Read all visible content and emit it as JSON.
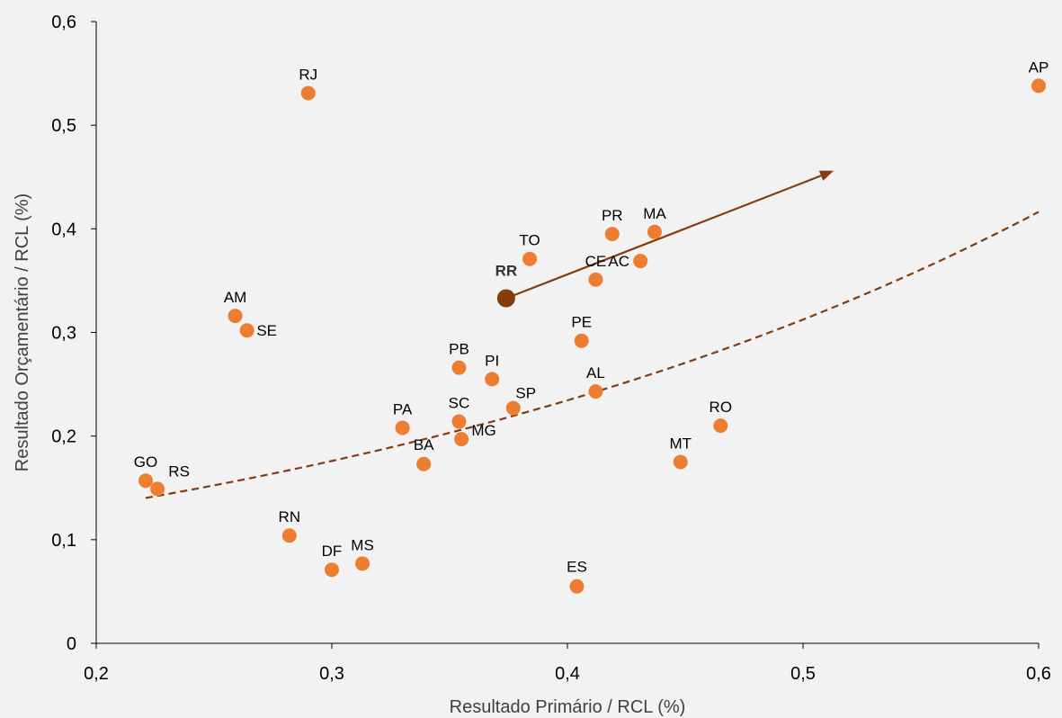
{
  "chart_data": {
    "type": "scatter",
    "title": "",
    "xlabel": "Resultado Primário / RCL (%)",
    "ylabel": "Resultado Orçamentário / RCL (%)",
    "xlim": [
      0.2,
      0.6
    ],
    "ylim": [
      0,
      0.6
    ],
    "xticks": [
      0.2,
      0.3,
      0.4,
      0.5,
      0.6
    ],
    "yticks": [
      0,
      0.1,
      0.2,
      0.3,
      0.4,
      0.5,
      0.6
    ],
    "xtick_labels": [
      "0,2",
      "0,3",
      "0,4",
      "0,5",
      "0,6"
    ],
    "ytick_labels": [
      "0",
      "0,1",
      "0,2",
      "0,3",
      "0,4",
      "0,5",
      "0,6"
    ],
    "grid": false,
    "points": [
      {
        "label": "AP",
        "x": 0.6,
        "y": 0.538
      },
      {
        "label": "RJ",
        "x": 0.29,
        "y": 0.531
      },
      {
        "label": "MA",
        "x": 0.437,
        "y": 0.397
      },
      {
        "label": "PR",
        "x": 0.419,
        "y": 0.395
      },
      {
        "label": "TO",
        "x": 0.384,
        "y": 0.371
      },
      {
        "label": "AC",
        "x": 0.431,
        "y": 0.369
      },
      {
        "label": "CE",
        "x": 0.412,
        "y": 0.351
      },
      {
        "label": "AM",
        "x": 0.259,
        "y": 0.316
      },
      {
        "label": "SE",
        "x": 0.264,
        "y": 0.302
      },
      {
        "label": "PE",
        "x": 0.406,
        "y": 0.292
      },
      {
        "label": "PB",
        "x": 0.354,
        "y": 0.266
      },
      {
        "label": "PI",
        "x": 0.368,
        "y": 0.255
      },
      {
        "label": "AL",
        "x": 0.412,
        "y": 0.243
      },
      {
        "label": "SP",
        "x": 0.377,
        "y": 0.227
      },
      {
        "label": "SC",
        "x": 0.354,
        "y": 0.214
      },
      {
        "label": "RO",
        "x": 0.465,
        "y": 0.21
      },
      {
        "label": "PA",
        "x": 0.33,
        "y": 0.208
      },
      {
        "label": "MG",
        "x": 0.355,
        "y": 0.197
      },
      {
        "label": "MT",
        "x": 0.448,
        "y": 0.175
      },
      {
        "label": "BA",
        "x": 0.339,
        "y": 0.173
      },
      {
        "label": "GO",
        "x": 0.221,
        "y": 0.157
      },
      {
        "label": "RS",
        "x": 0.226,
        "y": 0.149
      },
      {
        "label": "RN",
        "x": 0.282,
        "y": 0.104
      },
      {
        "label": "MS",
        "x": 0.313,
        "y": 0.077
      },
      {
        "label": "DF",
        "x": 0.3,
        "y": 0.071
      },
      {
        "label": "ES",
        "x": 0.404,
        "y": 0.055
      }
    ],
    "highlight": {
      "label": "RR",
      "x": 0.374,
      "y": 0.333
    },
    "arrow": {
      "from": [
        0.374,
        0.333
      ],
      "to": [
        0.513,
        0.456
      ]
    },
    "trendline": {
      "type": "exponential",
      "style": "dashed",
      "x_range": [
        0.221,
        0.6
      ],
      "a": 0.0744,
      "b": 2.87
    },
    "colors": {
      "point": "#ed7d31",
      "highlight": "#843c0c",
      "arrow": "#843c0c",
      "trendline": "#843c0c",
      "background": "#f2f2f2"
    }
  }
}
